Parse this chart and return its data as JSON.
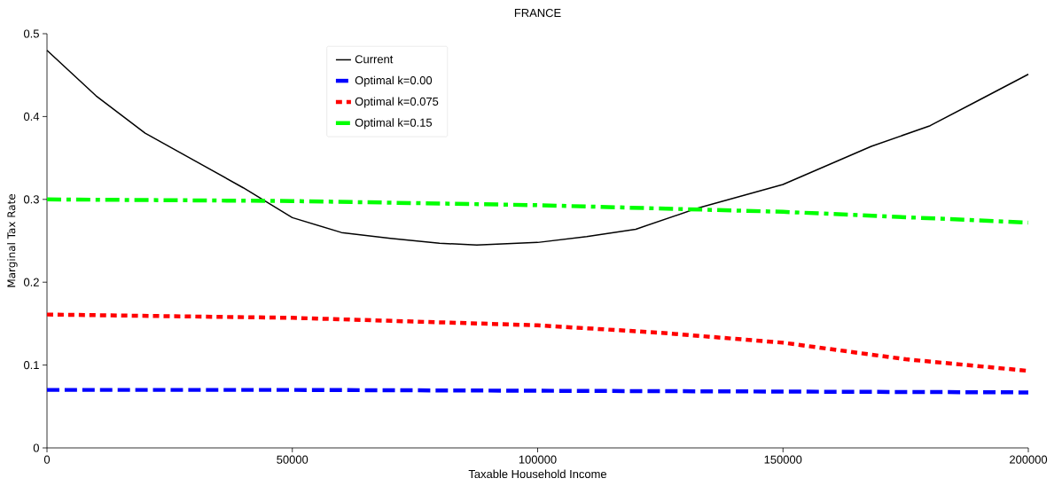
{
  "chart_data": {
    "type": "line",
    "title": "FRANCE",
    "xlabel": "Taxable Household Income",
    "ylabel": "Marginal Tax Rate",
    "xlim": [
      0,
      200000
    ],
    "ylim": [
      0,
      0.5
    ],
    "xticks": [
      0,
      50000,
      100000,
      150000,
      200000
    ],
    "yticks": [
      0,
      0.1,
      0.2,
      0.3,
      0.4,
      0.5
    ],
    "grid": false,
    "legend": "top left",
    "marker": "none",
    "series": [
      {
        "name": "Current",
        "color": "#000000",
        "line_style": "solid",
        "x": [
          0,
          10000,
          20000,
          30000,
          40000,
          50000,
          60000,
          70000,
          80000,
          87600,
          100000,
          110000,
          120000,
          132400,
          150000,
          168000,
          180000,
          190000,
          200000
        ],
        "values": [
          0.48,
          0.425,
          0.38,
          0.347,
          0.314,
          0.278,
          0.26,
          0.253,
          0.247,
          0.245,
          0.248,
          0.255,
          0.264,
          0.289,
          0.318,
          0.364,
          0.389,
          0.42,
          0.451
        ]
      },
      {
        "name": "Optimal k=0.00",
        "color": "#0000ff",
        "line_style": "dashed",
        "x": [
          0,
          50000,
          100000,
          150000,
          200000
        ],
        "values": [
          0.07,
          0.07,
          0.069,
          0.068,
          0.067
        ]
      },
      {
        "name": "Optimal k=0.075",
        "color": "#ff0000",
        "line_style": "dotted",
        "x": [
          0,
          50000,
          100000,
          125000,
          150000,
          175000,
          200000
        ],
        "values": [
          0.161,
          0.157,
          0.148,
          0.139,
          0.127,
          0.107,
          0.093
        ]
      },
      {
        "name": "Optimal k=0.15",
        "color": "#00ff00",
        "line_style": "dashdot",
        "x": [
          0,
          50000,
          100000,
          150000,
          200000
        ],
        "values": [
          0.3,
          0.298,
          0.293,
          0.285,
          0.272
        ]
      }
    ]
  }
}
